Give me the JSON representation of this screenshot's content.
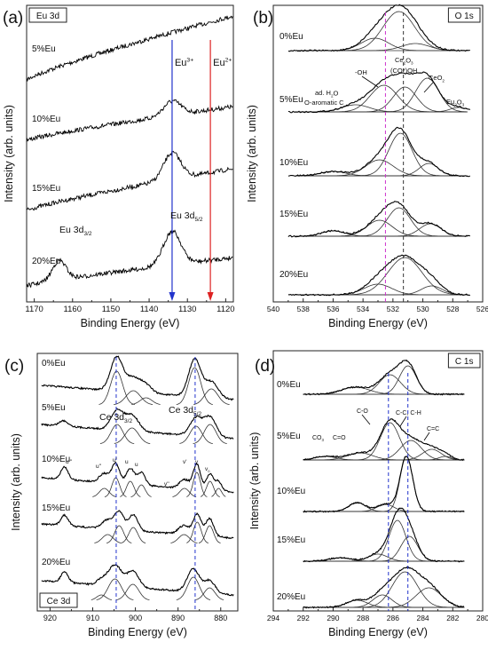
{
  "chart_data": [
    {
      "type": "line",
      "panel": "(a)",
      "box_label": "Eu 3d",
      "xlabel": "Binding Energy (eV)",
      "ylabel": "Intensity (arb. units)",
      "xlim": [
        1172,
        1118
      ],
      "ticks": [
        "1170",
        "1160",
        "1150",
        "1140",
        "1130",
        "1120"
      ],
      "series": [
        {
          "name": "5%Eu"
        },
        {
          "name": "10%Eu"
        },
        {
          "name": "15%Eu"
        },
        {
          "name": "20%Eu"
        }
      ],
      "markers": [
        {
          "label": "Eu",
          "sup": "3+",
          "x": 1134,
          "color": "#2233cc"
        },
        {
          "label": "Eu",
          "sup": "2+",
          "x": 1124,
          "color": "#dd2222"
        }
      ],
      "annotations": [
        {
          "text": "Eu 3d",
          "sub": "3/2"
        },
        {
          "text": "Eu 3d",
          "sub": "5/2"
        }
      ]
    },
    {
      "type": "line",
      "panel": "(b)",
      "box_label": "O 1s",
      "xlabel": "Binding Energy (eV)",
      "ylabel": "Intensity (arb. units)",
      "xlim": [
        540,
        526
      ],
      "ticks": [
        "540",
        "538",
        "536",
        "534",
        "532",
        "530",
        "528",
        "526"
      ],
      "series": [
        {
          "name": "0%Eu"
        },
        {
          "name": "5%Eu"
        },
        {
          "name": "10%Eu"
        },
        {
          "name": "15%Eu"
        },
        {
          "name": "20%Eu"
        }
      ],
      "reference_lines": [
        {
          "x": 532.5,
          "color": "#cc33cc"
        },
        {
          "x": 531.3,
          "color": "#333333"
        }
      ],
      "annotations": [
        {
          "text": "-OH"
        },
        {
          "text": "ad. H",
          "sub": "2",
          "after": "O"
        },
        {
          "text": "O-aromatic C"
        },
        {
          "text": "Ce",
          "sub": "2",
          "after": "O",
          "sub2": "3"
        },
        {
          "text": "(CO*)OH"
        },
        {
          "text": "CeO",
          "sub": "2"
        },
        {
          "text": "Eu",
          "sub": "2",
          "after": "O",
          "sub2": "3"
        }
      ]
    },
    {
      "type": "line",
      "panel": "(c)",
      "box_label": "Ce 3d",
      "xlabel": "Binding Energy (eV)",
      "ylabel": "Intensity (arb. units)",
      "xlim": [
        923,
        876
      ],
      "ticks": [
        "920",
        "910",
        "900",
        "890",
        "880"
      ],
      "series": [
        {
          "name": "0%Eu"
        },
        {
          "name": "5%Eu"
        },
        {
          "name": "10%Eu"
        },
        {
          "name": "15%Eu"
        },
        {
          "name": "20%Eu"
        }
      ],
      "reference_lines": [
        {
          "x": 904.5,
          "color": "#2233cc"
        },
        {
          "x": 886,
          "color": "#2233cc"
        }
      ],
      "annotations": [
        {
          "text": "Ce 3d",
          "sub": "3/2"
        },
        {
          "text": "Ce 3d",
          "sub": "5/2"
        },
        {
          "text": "u'''"
        },
        {
          "text": "u''"
        },
        {
          "text": "u'"
        },
        {
          "text": "u"
        },
        {
          "text": "u"
        },
        {
          "text": "v''"
        },
        {
          "text": "v'"
        },
        {
          "text": "v"
        },
        {
          "text": "v",
          "sub": "0"
        }
      ]
    },
    {
      "type": "line",
      "panel": "(d)",
      "box_label": "C 1s",
      "xlabel": "Binding Energy (eV)",
      "ylabel": "Intensity (arb. units)",
      "xlim": [
        294,
        280
      ],
      "ticks": [
        "294",
        "292",
        "290",
        "288",
        "286",
        "284",
        "282",
        "280"
      ],
      "series": [
        {
          "name": "0%Eu"
        },
        {
          "name": "5%Eu"
        },
        {
          "name": "10%Eu"
        },
        {
          "name": "15%Eu"
        },
        {
          "name": "20%Eu"
        }
      ],
      "reference_lines": [
        {
          "x": 286.3,
          "color": "#2233cc"
        },
        {
          "x": 285,
          "color": "#2233cc"
        }
      ],
      "annotations": [
        {
          "text": "C-O"
        },
        {
          "text": "C-C, C-H"
        },
        {
          "text": "CO",
          "sub": "3"
        },
        {
          "text": "C=O"
        },
        {
          "text": "C=C"
        }
      ]
    }
  ]
}
